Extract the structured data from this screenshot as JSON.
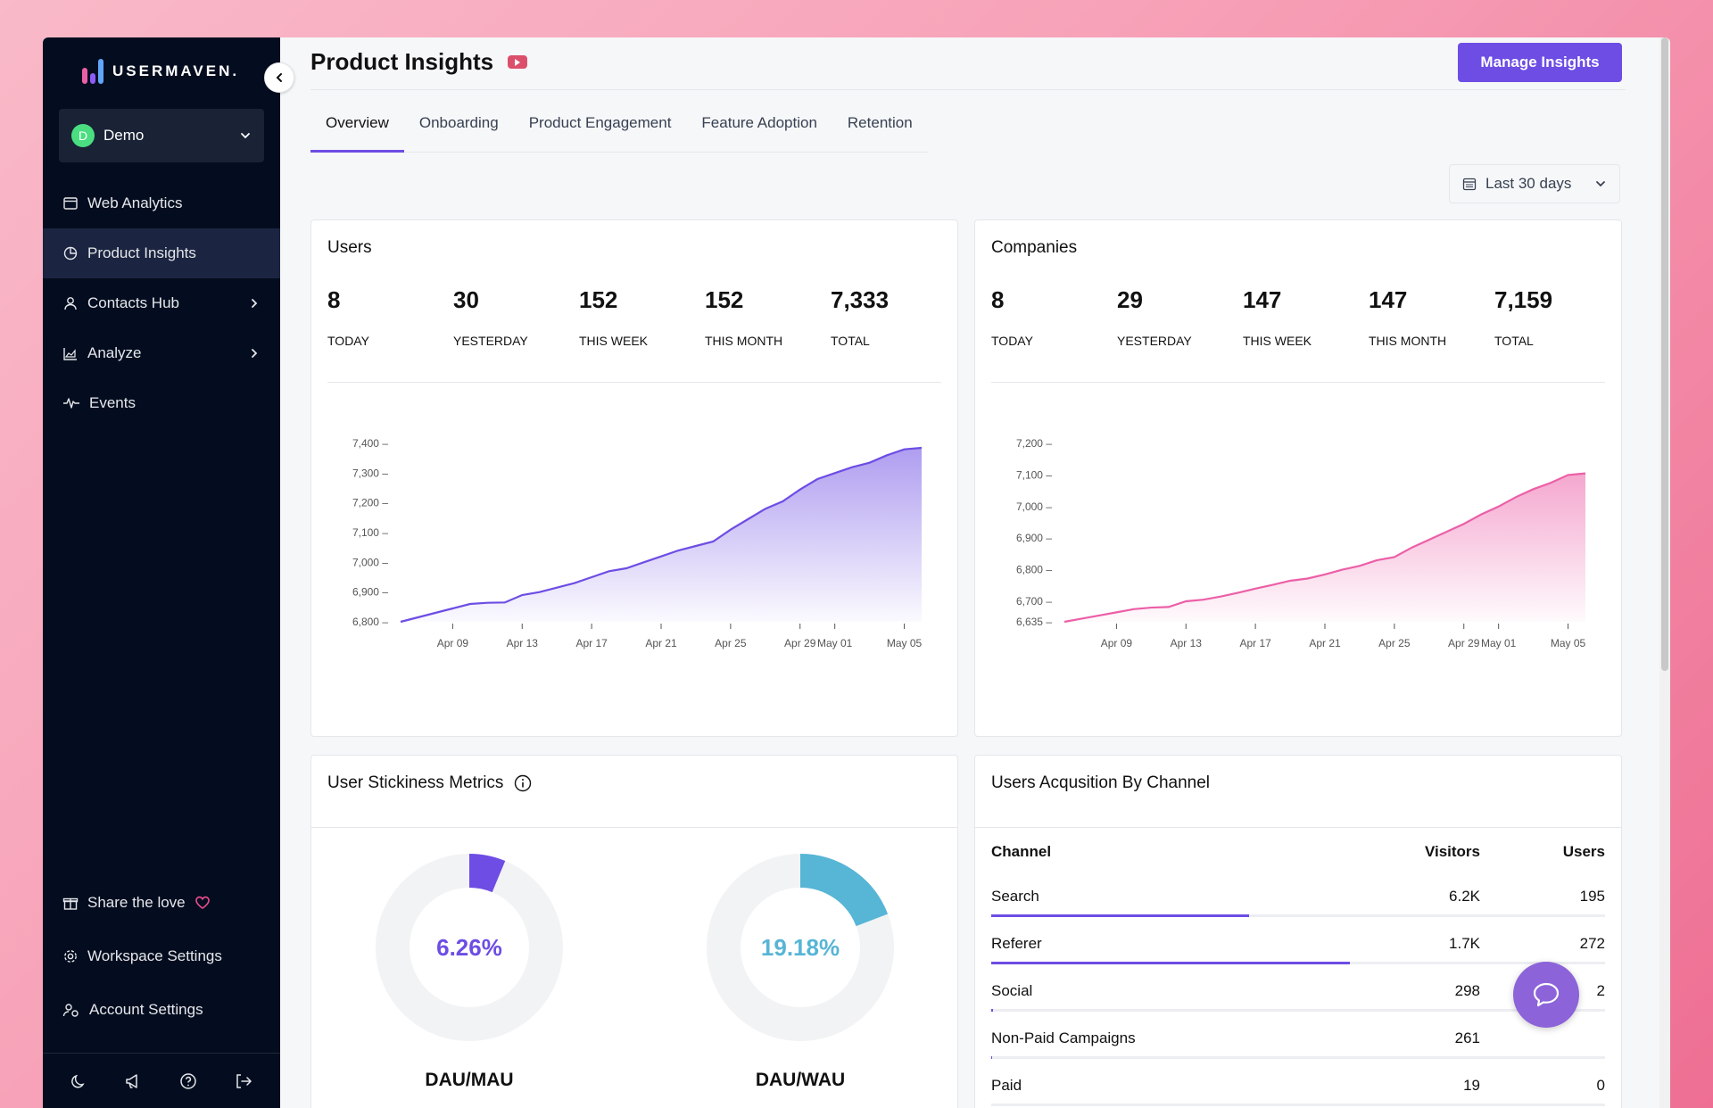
{
  "brand": {
    "logo_text": "USERMAVEN."
  },
  "workspace": {
    "avatar_letter": "D",
    "name": "Demo"
  },
  "nav": {
    "web_analytics": "Web Analytics",
    "product_insights": "Product Insights",
    "contacts_hub": "Contacts Hub",
    "analyze": "Analyze",
    "events": "Events",
    "share_love": "Share the love",
    "workspace_settings": "Workspace Settings",
    "account_settings": "Account Settings"
  },
  "header": {
    "title": "Product Insights",
    "manage_label": "Manage Insights"
  },
  "tabs": [
    "Overview",
    "Onboarding",
    "Product Engagement",
    "Feature Adoption",
    "Retention"
  ],
  "date_range": "Last 30 days",
  "users_card": {
    "title": "Users",
    "stats": [
      {
        "value": "8",
        "label": "TODAY"
      },
      {
        "value": "30",
        "label": "YESTERDAY"
      },
      {
        "value": "152",
        "label": "THIS WEEK"
      },
      {
        "value": "152",
        "label": "THIS MONTH"
      },
      {
        "value": "7,333",
        "label": "TOTAL"
      }
    ]
  },
  "companies_card": {
    "title": "Companies",
    "stats": [
      {
        "value": "8",
        "label": "TODAY"
      },
      {
        "value": "29",
        "label": "YESTERDAY"
      },
      {
        "value": "147",
        "label": "THIS WEEK"
      },
      {
        "value": "147",
        "label": "THIS MONTH"
      },
      {
        "value": "7,159",
        "label": "TOTAL"
      }
    ]
  },
  "chart_data": [
    {
      "type": "area",
      "color": "#6d4de4",
      "yticks": [
        6800,
        6900,
        7000,
        7100,
        7200,
        7300,
        7400
      ],
      "ytick_labels": [
        "6,800",
        "6,900",
        "7,000",
        "7,100",
        "7,200",
        "7,300",
        "7,400"
      ],
      "ylim": [
        6800,
        7400
      ],
      "xtick_labels": [
        "Apr 09",
        "Apr 13",
        "Apr 17",
        "Apr 21",
        "Apr 25",
        "Apr 29",
        "May 01",
        "May 05"
      ],
      "xtick_days": [
        3,
        7,
        11,
        15,
        19,
        23,
        25,
        29
      ],
      "x_days": [
        0,
        1,
        2,
        3,
        4,
        5,
        6,
        7,
        8,
        9,
        10,
        11,
        12,
        13,
        14,
        15,
        16,
        17,
        18,
        19,
        20,
        21,
        22,
        23,
        24,
        25,
        26,
        27,
        28,
        29,
        30
      ],
      "values": [
        6800,
        6815,
        6830,
        6845,
        6860,
        6864,
        6865,
        6890,
        6900,
        6915,
        6930,
        6950,
        6970,
        6980,
        7000,
        7020,
        7040,
        7055,
        7070,
        7110,
        7145,
        7180,
        7205,
        7245,
        7280,
        7300,
        7320,
        7335,
        7360,
        7380,
        7385
      ]
    },
    {
      "type": "area",
      "color": "#ec5fa7",
      "yticks": [
        6635,
        6700,
        6800,
        6900,
        7000,
        7100,
        7200
      ],
      "ytick_labels": [
        "6,635",
        "6,700",
        "6,800",
        "6,900",
        "7,000",
        "7,100",
        "7,200"
      ],
      "ylim": [
        6635,
        7200
      ],
      "xtick_labels": [
        "Apr 09",
        "Apr 13",
        "Apr 17",
        "Apr 21",
        "Apr 25",
        "Apr 29",
        "May 01",
        "May 05"
      ],
      "xtick_days": [
        3,
        7,
        11,
        15,
        19,
        23,
        25,
        29
      ],
      "x_days": [
        0,
        1,
        2,
        3,
        4,
        5,
        6,
        7,
        8,
        9,
        10,
        11,
        12,
        13,
        14,
        15,
        16,
        17,
        18,
        19,
        20,
        21,
        22,
        23,
        24,
        25,
        26,
        27,
        28,
        29,
        30
      ],
      "values": [
        6635,
        6645,
        6655,
        6665,
        6675,
        6680,
        6682,
        6700,
        6705,
        6715,
        6727,
        6740,
        6752,
        6765,
        6772,
        6785,
        6800,
        6812,
        6830,
        6840,
        6870,
        6895,
        6920,
        6945,
        6975,
        7000,
        7030,
        7055,
        7075,
        7100,
        7105
      ]
    }
  ],
  "stickiness": {
    "title": "User Stickiness Metrics",
    "dau_mau": {
      "percent_text": "6.26%",
      "value": 6.26,
      "label": "DAU/MAU",
      "color": "#6d4de4"
    },
    "dau_wau": {
      "percent_text": "19.18%",
      "value": 19.18,
      "label": "DAU/WAU",
      "color": "#57b5d6"
    }
  },
  "acquisition": {
    "title": "Users Acqusition By Channel",
    "headers": {
      "channel": "Channel",
      "visitors": "Visitors",
      "users": "Users"
    },
    "rows": [
      {
        "channel": "Search",
        "visitors": "6.2K",
        "users": "195",
        "share": 0.42
      },
      {
        "channel": "Referer",
        "visitors": "1.7K",
        "users": "272",
        "share": 0.585
      },
      {
        "channel": "Social",
        "visitors": "298",
        "users": "2",
        "share": 0.003
      },
      {
        "channel": "Non-Paid Campaigns",
        "visitors": "261",
        "users": "",
        "share": 0.002
      },
      {
        "channel": "Paid",
        "visitors": "19",
        "users": "0",
        "share": 0.0
      }
    ]
  }
}
